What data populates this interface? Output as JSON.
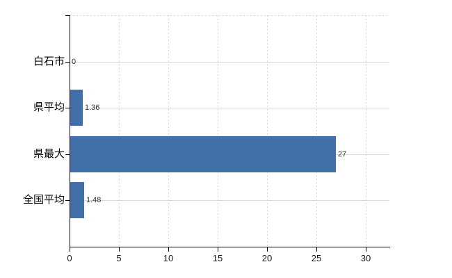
{
  "chart_data": {
    "type": "bar",
    "orientation": "horizontal",
    "title": "",
    "xlabel": "",
    "ylabel": "",
    "categories": [
      "白石市",
      "県平均",
      "県最大",
      "全国平均"
    ],
    "values": [
      0,
      1.36,
      27,
      1.48
    ],
    "value_labels": [
      "0",
      "1.36",
      "27",
      "1.48"
    ],
    "xticks": [
      0,
      5,
      10,
      15,
      20,
      25,
      30
    ],
    "xtick_labels": [
      "0",
      "5",
      "10",
      "15",
      "20",
      "25",
      "30"
    ],
    "xlim": [
      0,
      32.4
    ],
    "grid": "on",
    "legend": "none",
    "colors": {
      "bar": "#4170a8",
      "grid_horizontal": "#d5dcd2",
      "grid_vertical_dashed": "#d8d3db",
      "axis": "#000000",
      "category_label": "#000000",
      "tick_label": "#1a1a1a",
      "value_label": "#333333",
      "background": "#ffffff"
    }
  }
}
